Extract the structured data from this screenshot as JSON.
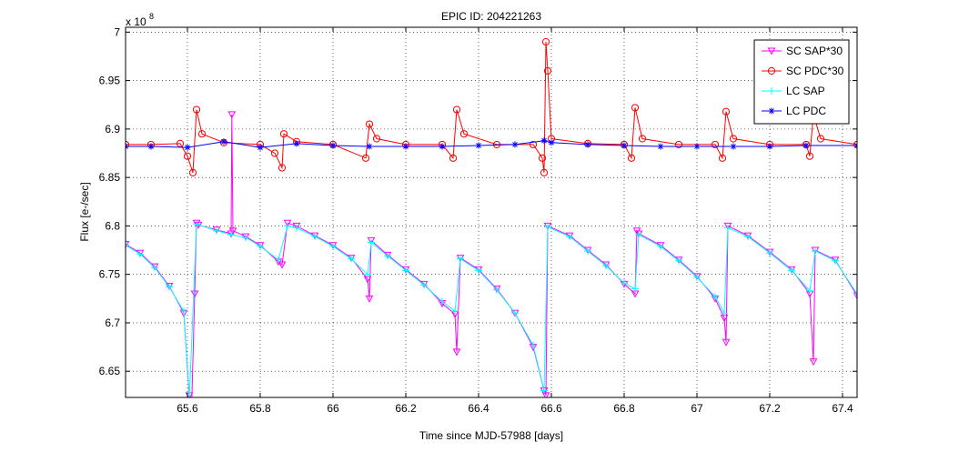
{
  "chart_data": {
    "type": "line",
    "title": "EPIC ID: 204221263",
    "xlabel": "Time since MJD-57988 [days]",
    "ylabel": "Flux [e-/sec]",
    "y_exponent_label": "x 10",
    "y_exponent_power": "8",
    "xlim": [
      65.43,
      67.44
    ],
    "ylim": [
      6.623,
      7.005
    ],
    "grid": true,
    "legend_position": "top-right",
    "x_ticks": [
      65.6,
      65.8,
      66,
      66.2,
      66.4,
      66.6,
      66.8,
      67,
      67.2,
      67.4
    ],
    "x_tick_labels": [
      "65.6",
      "65.8",
      "66",
      "66.2",
      "66.4",
      "66.6",
      "66.8",
      "67",
      "67.2",
      "67.4"
    ],
    "y_ticks": [
      6.65,
      6.7,
      6.75,
      6.8,
      6.85,
      6.9,
      6.95,
      7.0
    ],
    "y_tick_labels": [
      "6.65",
      "6.7",
      "6.75",
      "6.8",
      "6.85",
      "6.9",
      "6.95",
      "7"
    ],
    "series": [
      {
        "name": "SC SAP*30",
        "color": "#ff00ff",
        "marker": "triangle-down",
        "x": [
          65.43,
          65.47,
          65.51,
          65.55,
          65.59,
          65.605,
          65.612,
          65.62,
          65.625,
          65.63,
          65.68,
          65.72,
          65.722,
          65.725,
          65.76,
          65.8,
          65.85,
          65.86,
          65.875,
          65.9,
          65.95,
          66.0,
          66.05,
          66.095,
          66.1,
          66.105,
          66.15,
          66.2,
          66.25,
          66.3,
          66.335,
          66.34,
          66.35,
          66.4,
          66.45,
          66.5,
          66.55,
          66.58,
          66.585,
          66.59,
          66.65,
          66.7,
          66.75,
          66.8,
          66.83,
          66.835,
          66.84,
          66.9,
          66.95,
          67.0,
          67.05,
          67.075,
          67.08,
          67.085,
          67.14,
          67.2,
          67.26,
          67.31,
          67.32,
          67.325,
          67.38,
          67.44
        ],
        "y": [
          6.781,
          6.772,
          6.758,
          6.738,
          6.71,
          6.625,
          6.62,
          6.73,
          6.803,
          6.801,
          6.796,
          6.792,
          6.915,
          6.795,
          6.789,
          6.78,
          6.763,
          6.76,
          6.803,
          6.8,
          6.79,
          6.78,
          6.767,
          6.745,
          6.725,
          6.785,
          6.77,
          6.755,
          6.74,
          6.72,
          6.709,
          6.67,
          6.767,
          6.755,
          6.735,
          6.71,
          6.675,
          6.63,
          6.625,
          6.8,
          6.79,
          6.775,
          6.76,
          6.74,
          6.73,
          6.795,
          6.792,
          6.78,
          6.765,
          6.748,
          6.725,
          6.705,
          6.68,
          6.8,
          6.79,
          6.773,
          6.755,
          6.73,
          6.66,
          6.775,
          6.765,
          6.728
        ]
      },
      {
        "name": "SC PDC*30",
        "color": "#ff0000",
        "marker": "circle",
        "x": [
          65.43,
          65.5,
          65.58,
          65.6,
          65.615,
          65.625,
          65.64,
          65.7,
          65.8,
          65.84,
          65.86,
          65.865,
          65.9,
          66.0,
          66.09,
          66.1,
          66.12,
          66.2,
          66.3,
          66.33,
          66.34,
          66.36,
          66.45,
          66.55,
          66.575,
          66.58,
          66.585,
          66.59,
          66.6,
          66.7,
          66.8,
          66.82,
          66.83,
          66.85,
          66.95,
          67.05,
          67.07,
          67.08,
          67.1,
          67.2,
          67.3,
          67.31,
          67.32,
          67.34,
          67.44
        ],
        "y": [
          6.884,
          6.884,
          6.885,
          6.872,
          6.855,
          6.92,
          6.895,
          6.886,
          6.884,
          6.875,
          6.86,
          6.895,
          6.887,
          6.884,
          6.87,
          6.905,
          6.89,
          6.884,
          6.884,
          6.87,
          6.92,
          6.895,
          6.884,
          6.884,
          6.87,
          6.855,
          6.99,
          6.96,
          6.89,
          6.885,
          6.884,
          6.87,
          6.922,
          6.89,
          6.884,
          6.884,
          6.87,
          6.918,
          6.89,
          6.884,
          6.884,
          6.872,
          6.915,
          6.89,
          6.884
        ]
      },
      {
        "name": "LC SAP",
        "color": "#00ffff",
        "marker": "plus",
        "x": [
          65.43,
          65.47,
          65.51,
          65.55,
          65.59,
          65.605,
          65.625,
          65.68,
          65.72,
          65.76,
          65.8,
          65.85,
          65.875,
          65.9,
          65.95,
          66.0,
          66.05,
          66.095,
          66.105,
          66.15,
          66.2,
          66.25,
          66.3,
          66.335,
          66.35,
          66.4,
          66.45,
          66.5,
          66.55,
          66.58,
          66.59,
          66.65,
          66.7,
          66.75,
          66.8,
          66.83,
          66.84,
          66.9,
          66.95,
          67.0,
          67.05,
          67.075,
          67.085,
          67.14,
          67.2,
          67.26,
          67.31,
          67.325,
          67.38,
          67.44
        ],
        "y": [
          6.78,
          6.771,
          6.757,
          6.737,
          6.712,
          6.62,
          6.802,
          6.795,
          6.791,
          6.788,
          6.779,
          6.765,
          6.8,
          6.798,
          6.789,
          6.779,
          6.766,
          6.75,
          6.783,
          6.769,
          6.754,
          6.739,
          6.722,
          6.712,
          6.766,
          6.754,
          6.734,
          6.71,
          6.677,
          6.63,
          6.799,
          6.789,
          6.774,
          6.759,
          6.741,
          6.735,
          6.791,
          6.779,
          6.764,
          6.747,
          6.727,
          6.71,
          6.798,
          6.789,
          6.772,
          6.754,
          6.733,
          6.774,
          6.764,
          6.73
        ]
      },
      {
        "name": "LC PDC",
        "color": "#0000ff",
        "marker": "star",
        "x": [
          65.43,
          65.5,
          65.6,
          65.7,
          65.8,
          65.9,
          66.0,
          66.1,
          66.2,
          66.3,
          66.4,
          66.5,
          66.58,
          66.6,
          66.7,
          66.8,
          66.9,
          67.0,
          67.1,
          67.2,
          67.3,
          67.44
        ],
        "y": [
          6.882,
          6.882,
          6.881,
          6.887,
          6.881,
          6.885,
          6.883,
          6.882,
          6.882,
          6.882,
          6.883,
          6.884,
          6.888,
          6.886,
          6.884,
          6.883,
          6.882,
          6.882,
          6.882,
          6.882,
          6.883,
          6.883
        ]
      }
    ]
  }
}
